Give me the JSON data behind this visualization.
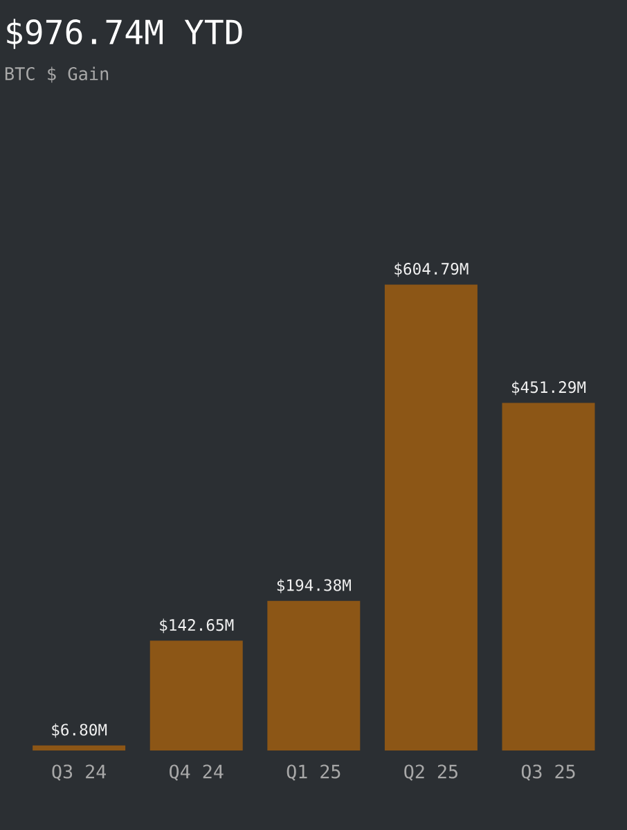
{
  "chart_data": {
    "type": "bar",
    "title": "$976.74M YTD",
    "subtitle": "BTC $ Gain",
    "categories": [
      "Q3 24",
      "Q4 24",
      "Q1 25",
      "Q2 25",
      "Q3 25"
    ],
    "values": [
      6.8,
      142.65,
      194.38,
      604.79,
      451.29
    ],
    "value_labels": [
      "$6.80M",
      "$142.65M",
      "$194.38M",
      "$604.79M",
      "$451.29M"
    ],
    "color": "#8c5616"
  }
}
